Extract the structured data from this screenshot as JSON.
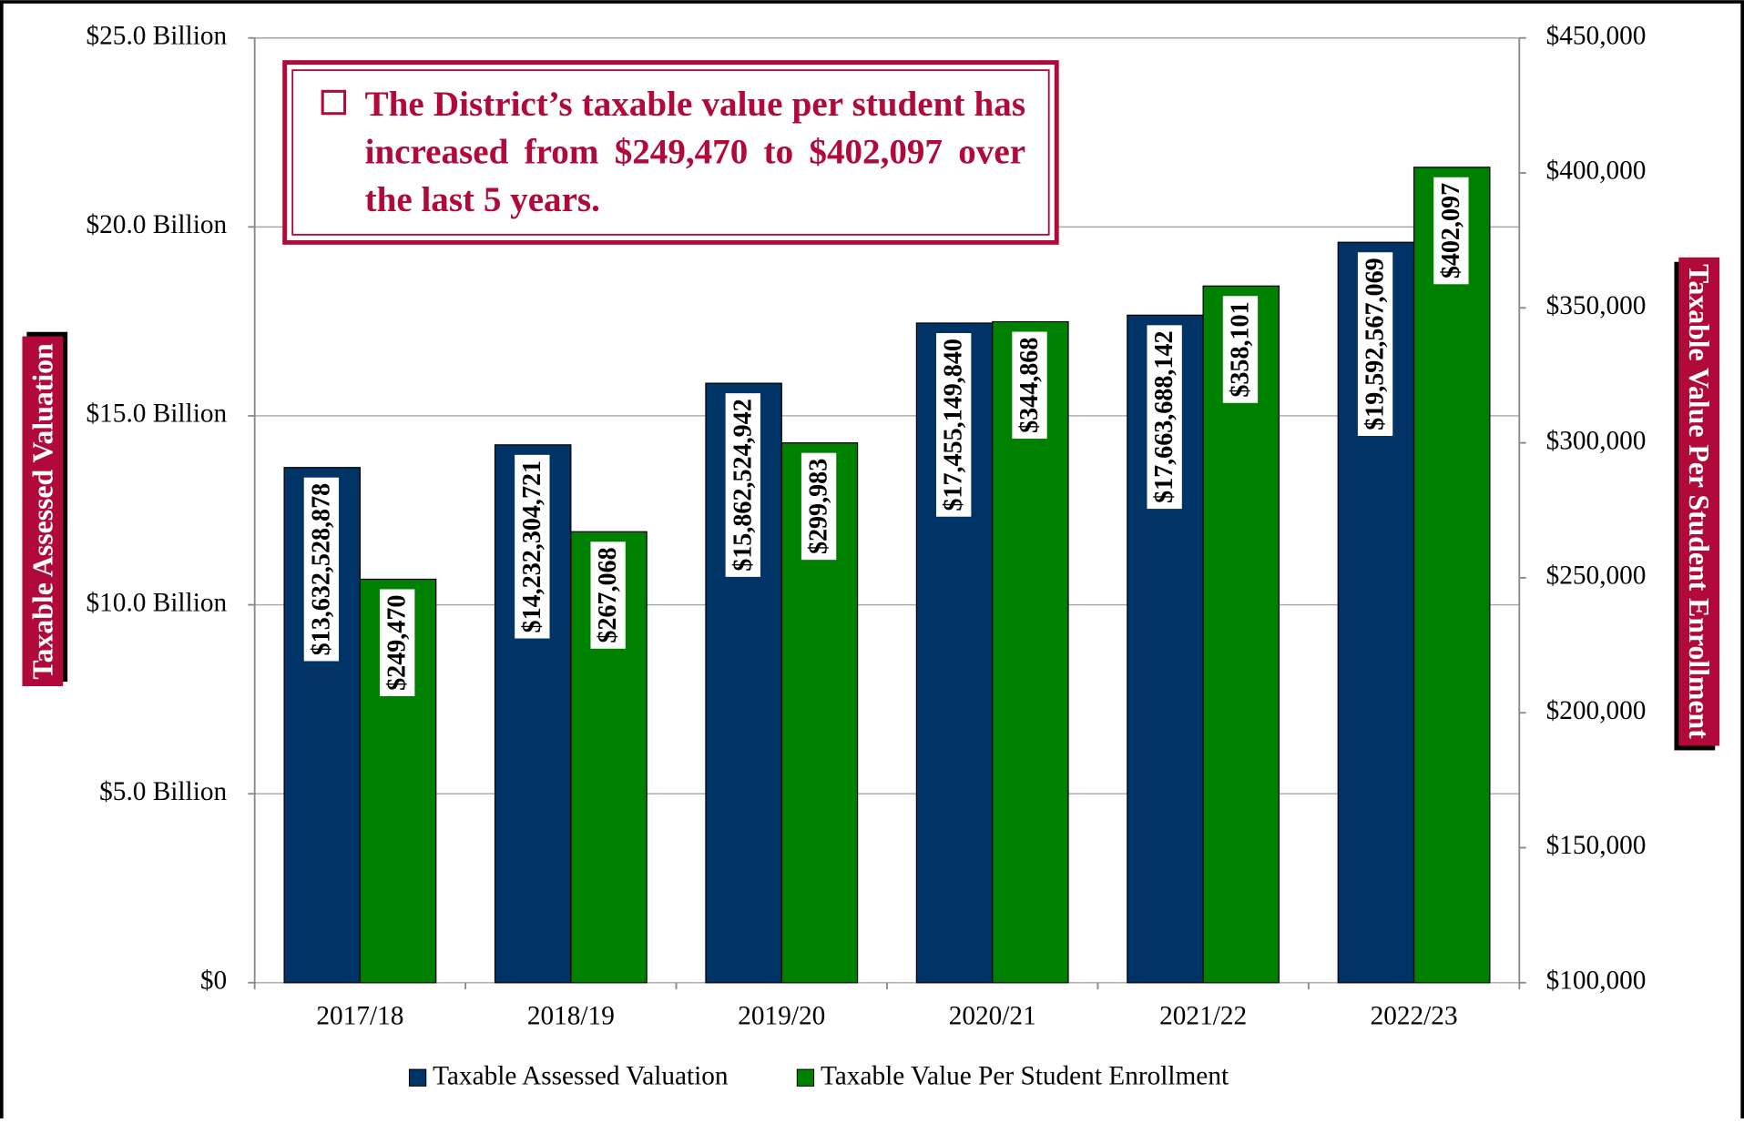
{
  "chart_data": {
    "type": "bar",
    "annotation": "The District’s taxable value per student has increased from $249,470 to $402,097 over the last 5 years.",
    "ylabel": "Taxable Assessed Valuation",
    "y2label": "Taxable Value Per Student Enrollment",
    "categories": [
      "2017/18",
      "2018/19",
      "2019/20",
      "2020/21",
      "2021/22",
      "2022/23"
    ],
    "series": [
      {
        "name": "Taxable Assessed Valuation",
        "color": "#003366",
        "values": [
          13632528878,
          14232304721,
          15862524942,
          17455149840,
          17663688142,
          19592567069
        ],
        "value_labels": [
          "$13,632,528,878",
          "$14,232,304,721",
          "$15,862,524,942",
          "$17,455,149,840",
          "$17,663,688,142",
          "$19,592,567,069"
        ]
      },
      {
        "name": "Taxable Value Per Student Enrollment",
        "color": "#008000",
        "axis": "y2",
        "values": [
          249470,
          267068,
          299983,
          344868,
          358101,
          402097
        ],
        "value_labels": [
          "$249,470",
          "$267,068",
          "$299,983",
          "$344,868",
          "$358,101",
          "$402,097"
        ]
      }
    ],
    "ylim": [
      0,
      25000000000
    ],
    "yticks": [
      {
        "value": 0,
        "label": "$0"
      },
      {
        "value": 5000000000,
        "label": "$5.0 Billion"
      },
      {
        "value": 10000000000,
        "label": "$10.0 Billion"
      },
      {
        "value": 15000000000,
        "label": "$15.0 Billion"
      },
      {
        "value": 20000000000,
        "label": "$20.0 Billion"
      },
      {
        "value": 25000000000,
        "label": "$25.0 Billion"
      }
    ],
    "y2lim": [
      100000,
      450000
    ],
    "y2ticks": [
      {
        "value": 100000,
        "label": "$100,000"
      },
      {
        "value": 150000,
        "label": "$150,000"
      },
      {
        "value": 200000,
        "label": "$200,000"
      },
      {
        "value": 250000,
        "label": "$250,000"
      },
      {
        "value": 300000,
        "label": "$300,000"
      },
      {
        "value": 350000,
        "label": "$350,000"
      },
      {
        "value": 400000,
        "label": "$400,000"
      },
      {
        "value": 450000,
        "label": "$450,000"
      }
    ],
    "grid": true,
    "legend": "bottom"
  }
}
